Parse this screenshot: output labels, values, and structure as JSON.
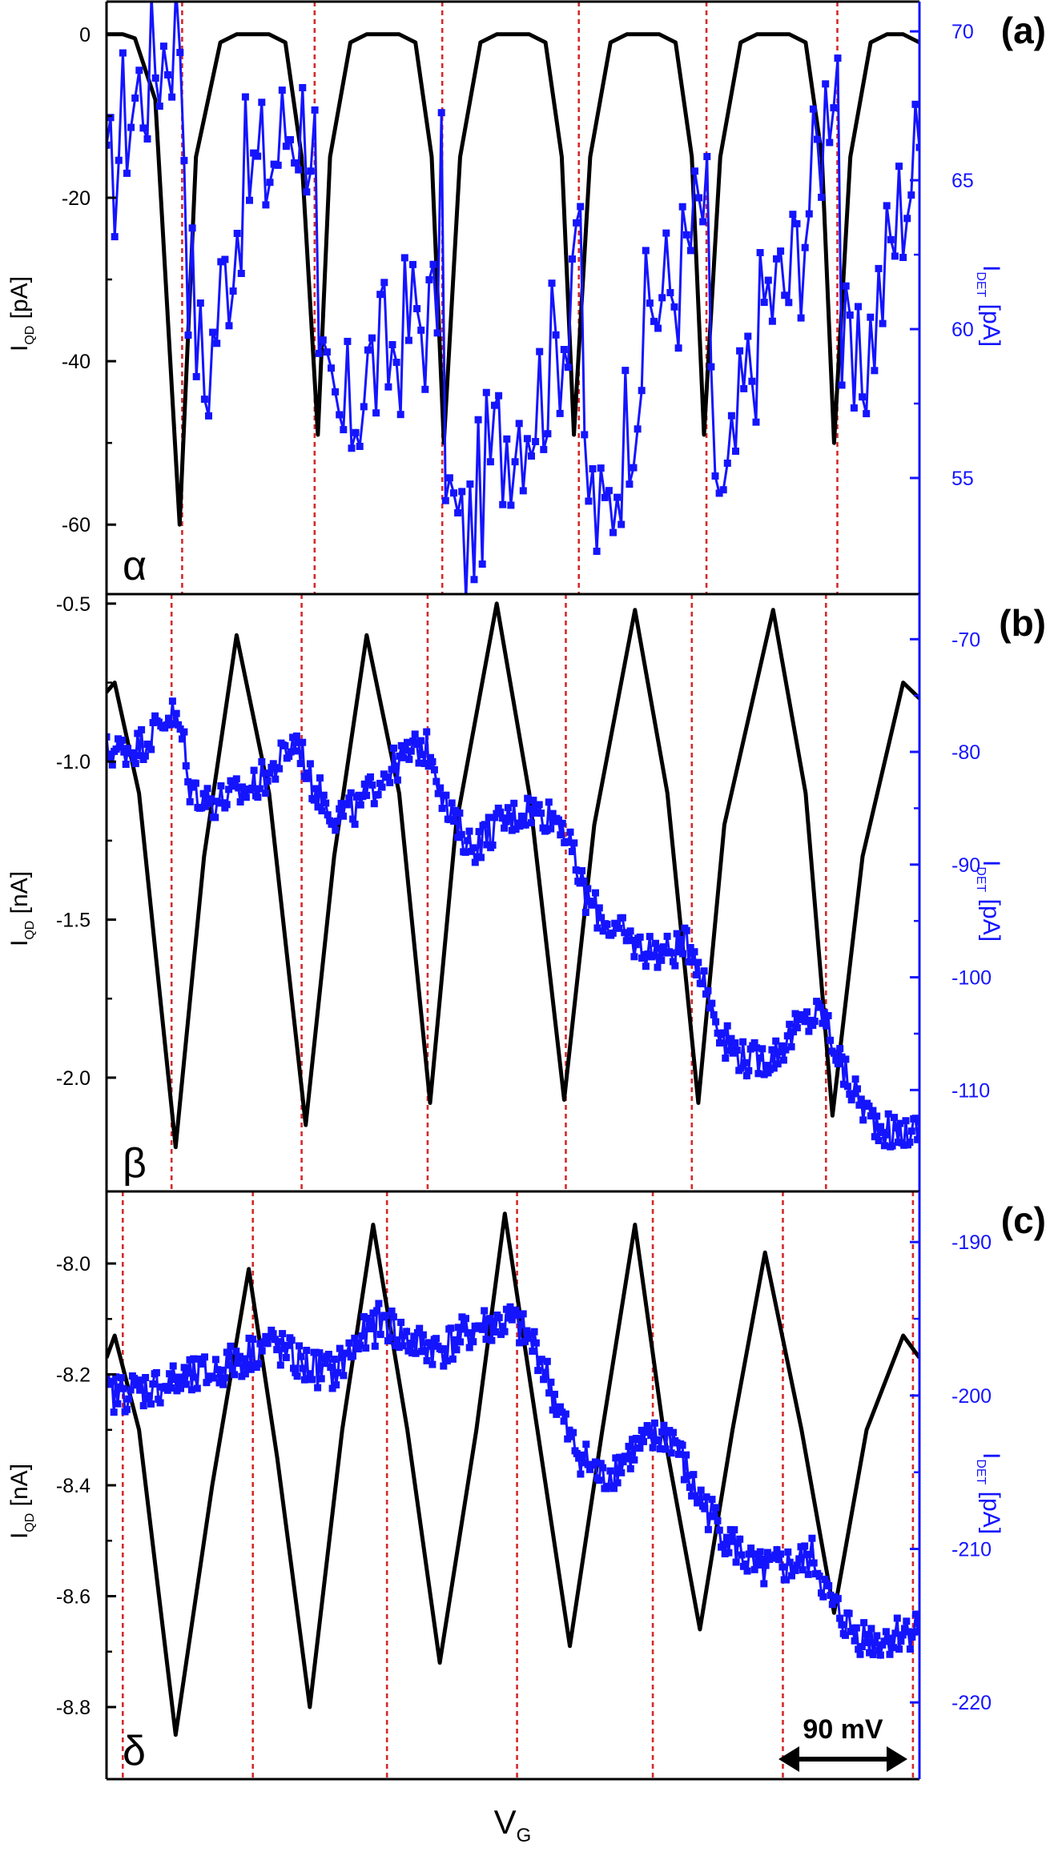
{
  "colors": {
    "qd": "#000000",
    "det": "#1414ff",
    "marker": "#d42a2a",
    "frame": "#000000",
    "right_axis": "#1414ff"
  },
  "x_axis_label": "V",
  "x_axis_label_sub": "G",
  "scale_bar_label": "90 mV",
  "chart_data": [
    {
      "type": "line",
      "panel_label": "(a)",
      "greek_label": "α",
      "left_axis": {
        "label": "I",
        "sub": "QD",
        "unit": " [pA]",
        "ticks": [
          0,
          -20,
          -40,
          -60
        ],
        "tick_labels": [
          "0",
          "-20",
          "-40",
          "-60"
        ],
        "range": [
          -68.5,
          4
        ]
      },
      "right_axis": {
        "label": "I",
        "sub": "DET",
        "unit": " [pA]",
        "ticks": [
          70,
          65,
          60,
          55
        ],
        "tick_labels": [
          "70",
          "65",
          "60",
          "55"
        ],
        "range": [
          51.1,
          71
        ]
      },
      "x_range": [
        0,
        100
      ],
      "vlines": [
        9.3,
        25.6,
        41.3,
        58.1,
        73.8,
        89.9
      ],
      "series": [
        {
          "axis": "left",
          "style": "line",
          "x": [
            0,
            2,
            3.5,
            6,
            9,
            11,
            14,
            16,
            18,
            20,
            22,
            24,
            26,
            27.5,
            30,
            32,
            34,
            36,
            38,
            40,
            41.5,
            43.5,
            46,
            48,
            50,
            52,
            54,
            56,
            57.5,
            59.5,
            62,
            64,
            66,
            68,
            70,
            72,
            73.5,
            75.5,
            78,
            80,
            82,
            84,
            86,
            88,
            89.5,
            91.5,
            94,
            96,
            98,
            100
          ],
          "y": [
            0,
            0,
            -0.5,
            -8,
            -60,
            -15,
            -1,
            0,
            0,
            0,
            -1,
            -15,
            -49,
            -15,
            -1,
            0,
            0,
            0,
            -1,
            -15,
            -50,
            -15,
            -1,
            0,
            0,
            0,
            -1,
            -15,
            -49,
            -15,
            -1,
            0,
            0,
            0,
            -1,
            -15,
            -49,
            -15,
            -1,
            0,
            0,
            0,
            -1,
            -15,
            -50,
            -15,
            -1,
            0,
            0,
            -1
          ]
        },
        {
          "axis": "right",
          "style": "markers",
          "base": [
            [
              0,
              64
            ],
            [
              2,
              67
            ],
            [
              5,
              68.5
            ],
            [
              8,
              70
            ],
            [
              9.3,
              70.5
            ],
            [
              9.8,
              63
            ],
            [
              12,
              58
            ],
            [
              14,
              61
            ],
            [
              17,
              65
            ],
            [
              20,
              65.5
            ],
            [
              23,
              67.2
            ],
            [
              25.6,
              66.8
            ],
            [
              26,
              57.5
            ],
            [
              29,
              56.5
            ],
            [
              32,
              58.5
            ],
            [
              35,
              59.2
            ],
            [
              38,
              60.5
            ],
            [
              40.5,
              60.2
            ],
            [
              41.3,
              65.2
            ],
            [
              41.8,
              54.5
            ],
            [
              44,
              52.5
            ],
            [
              47,
              55.5
            ],
            [
              50,
              57
            ],
            [
              53,
              57.7
            ],
            [
              56.5,
              60.3
            ],
            [
              58.1,
              65.3
            ],
            [
              58.6,
              55.5
            ],
            [
              61,
              53
            ],
            [
              64,
              57
            ],
            [
              67,
              60.8
            ],
            [
              70,
              61.5
            ],
            [
              73,
              63.8
            ],
            [
              73.8,
              64.5
            ],
            [
              74.3,
              57
            ],
            [
              76,
              53.5
            ],
            [
              78,
              57
            ],
            [
              81,
              61
            ],
            [
              84,
              61.5
            ],
            [
              87,
              65
            ],
            [
              89,
              68.5
            ],
            [
              89.9,
              70.3
            ],
            [
              90.4,
              59.5
            ],
            [
              92,
              57.5
            ],
            [
              95,
              61
            ],
            [
              98,
              64.5
            ],
            [
              100,
              66
            ]
          ],
          "amp": 2.8,
          "count": 200
        }
      ]
    },
    {
      "type": "line",
      "panel_label": "(b)",
      "greek_label": "β",
      "left_axis": {
        "label": "I",
        "sub": "QD",
        "unit": " [nA]",
        "ticks": [
          -0.5,
          -1.0,
          -1.5,
          -2.0
        ],
        "tick_labels": [
          "-0.5",
          "-1.0",
          "-1.5",
          "-2.0"
        ],
        "range": [
          -2.36,
          -0.47
        ]
      },
      "right_axis": {
        "label": "I",
        "sub": "DET",
        "unit": " [pA]",
        "ticks": [
          -70,
          -80,
          -90,
          -100,
          -110
        ],
        "tick_labels": [
          "-70",
          "-80",
          "-90",
          "-100",
          "-110"
        ],
        "range": [
          -119,
          -66
        ]
      },
      "x_range": [
        0,
        100
      ],
      "vlines": [
        8,
        24,
        39.5,
        56.5,
        72,
        88.5
      ],
      "series": [
        {
          "axis": "left",
          "style": "line",
          "x": [
            0,
            1,
            4,
            8.5,
            12,
            16,
            20,
            24.5,
            28,
            32,
            36,
            39.8,
            43,
            48,
            52,
            56.3,
            60,
            65,
            69,
            72.8,
            76,
            82,
            86,
            89.3,
            93,
            98,
            100
          ],
          "y": [
            -0.78,
            -0.75,
            -1.1,
            -2.22,
            -1.3,
            -0.6,
            -1.1,
            -2.15,
            -1.3,
            -0.6,
            -1.1,
            -2.08,
            -1.2,
            -0.5,
            -1.1,
            -2.07,
            -1.2,
            -0.52,
            -1.1,
            -2.08,
            -1.2,
            -0.52,
            -1.1,
            -2.12,
            -1.3,
            -0.75,
            -0.8
          ]
        },
        {
          "axis": "right",
          "style": "markers",
          "base": [
            [
              0,
              -80
            ],
            [
              4,
              -79.5
            ],
            [
              8,
              -76.5
            ],
            [
              9.5,
              -79
            ],
            [
              10,
              -83
            ],
            [
              13,
              -84.5
            ],
            [
              17,
              -83.5
            ],
            [
              20,
              -82
            ],
            [
              23.5,
              -78.8
            ],
            [
              25,
              -82.5
            ],
            [
              28,
              -85.5
            ],
            [
              31,
              -85
            ],
            [
              34,
              -82
            ],
            [
              38.5,
              -79.5
            ],
            [
              40,
              -80
            ],
            [
              42,
              -85.5
            ],
            [
              45,
              -88.5
            ],
            [
              48,
              -86.5
            ],
            [
              52,
              -85
            ],
            [
              56,
              -86
            ],
            [
              57,
              -88.5
            ],
            [
              59,
              -93
            ],
            [
              62,
              -95.5
            ],
            [
              66,
              -97.5
            ],
            [
              69,
              -97.8
            ],
            [
              72,
              -97
            ],
            [
              74,
              -101.5
            ],
            [
              76,
              -105.5
            ],
            [
              79,
              -107.5
            ],
            [
              82,
              -107
            ],
            [
              85,
              -104.5
            ],
            [
              88,
              -103
            ],
            [
              89,
              -105
            ],
            [
              91,
              -109
            ],
            [
              94,
              -112.5
            ],
            [
              97,
              -114
            ],
            [
              100,
              -113.5
            ]
          ],
          "amp": 1.6,
          "count": 420
        }
      ]
    },
    {
      "type": "line",
      "panel_label": "(c)",
      "greek_label": "δ",
      "left_axis": {
        "label": "I",
        "sub": "QD",
        "unit": " [nA]",
        "ticks": [
          -8.0,
          -8.2,
          -8.4,
          -8.6,
          -8.8
        ],
        "tick_labels": [
          "-8.0",
          "-8.2",
          "-8.4",
          "-8.6",
          "-8.8"
        ],
        "range": [
          -8.93,
          -7.87
        ]
      },
      "right_axis": {
        "label": "I",
        "sub": "DET",
        "unit": " [pA]",
        "ticks": [
          -190,
          -200,
          -210,
          -220
        ],
        "tick_labels": [
          "-190",
          "-200",
          "-210",
          "-220"
        ],
        "range": [
          -225,
          -186.7
        ]
      },
      "x_range": [
        0,
        100
      ],
      "vlines": [
        2,
        18,
        34.5,
        50.5,
        67.2,
        83.2,
        99.2
      ],
      "series": [
        {
          "axis": "left",
          "style": "line",
          "x": [
            0,
            1,
            4,
            8.5,
            13,
            17.5,
            21,
            25,
            29,
            32.8,
            37,
            41,
            45.5,
            49,
            53,
            57,
            61,
            65,
            68.5,
            73,
            77,
            81,
            85.5,
            89.5,
            93.5,
            98,
            100
          ],
          "y": [
            -8.17,
            -8.13,
            -8.3,
            -8.85,
            -8.4,
            -8.01,
            -8.35,
            -8.8,
            -8.3,
            -7.93,
            -8.3,
            -8.72,
            -8.3,
            -7.91,
            -8.3,
            -8.69,
            -8.3,
            -7.93,
            -8.3,
            -8.66,
            -8.3,
            -7.98,
            -8.3,
            -8.63,
            -8.3,
            -8.13,
            -8.17
          ]
        },
        {
          "axis": "right",
          "style": "markers",
          "base": [
            [
              0,
              -200
            ],
            [
              5,
              -199.5
            ],
            [
              10,
              -199
            ],
            [
              13,
              -198.5
            ],
            [
              17,
              -197.5
            ],
            [
              20,
              -196.5
            ],
            [
              24,
              -198
            ],
            [
              28,
              -198.5
            ],
            [
              31,
              -196.5
            ],
            [
              34,
              -195
            ],
            [
              37,
              -196.5
            ],
            [
              41,
              -197
            ],
            [
              46,
              -195.5
            ],
            [
              50,
              -195.2
            ],
            [
              53,
              -197
            ],
            [
              57,
              -203
            ],
            [
              61,
              -205.5
            ],
            [
              65,
              -203.5
            ],
            [
              69,
              -202.5
            ],
            [
              70,
              -203
            ],
            [
              72,
              -206
            ],
            [
              76,
              -209
            ],
            [
              80,
              -211.5
            ],
            [
              85,
              -211
            ],
            [
              87,
              -210.5
            ],
            [
              89,
              -213.5
            ],
            [
              92,
              -215.5
            ],
            [
              95,
              -216
            ],
            [
              100,
              -215
            ]
          ],
          "amp": 1.3,
          "count": 440
        }
      ]
    }
  ]
}
